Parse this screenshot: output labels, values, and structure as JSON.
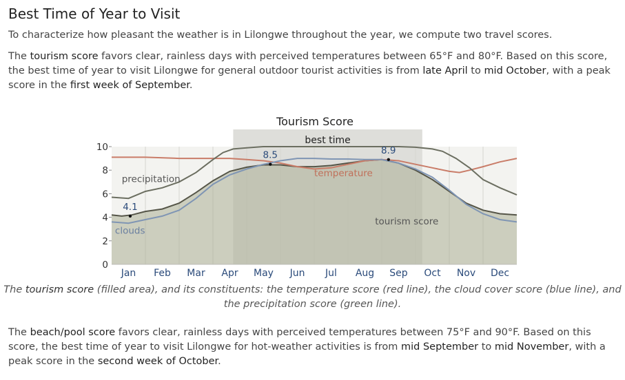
{
  "header": {
    "title": "Best Time of Year to Visit"
  },
  "intro": "To characterize how pleasant the weather is in Lilongwe throughout the year, we compute two travel scores.",
  "tourism": {
    "p1": "The ",
    "term": "tourism score",
    "p2": " favors clear, rainless days with perceived temperatures between 65°F and 80°F. Based on this score, the best time of year to visit Lilongwe for general outdoor tourist activities is from ",
    "start": "late April",
    "p3": " to ",
    "end": "mid October",
    "p4": ", with a peak score in the ",
    "peak": "first week of September",
    "p5": "."
  },
  "caption": {
    "c1": "The ",
    "term": "tourism score",
    "c2": " (filled area), and its constituents: the temperature score (red line), the cloud cover score (blue line), and the precipitation score (green line)."
  },
  "beach": {
    "p1": "The ",
    "term": "beach/pool score",
    "p2": " favors clear, rainless days with perceived temperatures between 75°F and 90°F. Based on this score, the best time of year to visit Lilongwe for hot-weather activities is from ",
    "start": "mid September",
    "p3": " to ",
    "end": "mid November",
    "p4": ", with a peak score in the ",
    "peak": "second week of October",
    "p5": "."
  },
  "chart_data": {
    "type": "area",
    "title": "Tourism Score",
    "ylim": [
      0,
      10
    ],
    "yticks": [
      0,
      2,
      4,
      6,
      8,
      10
    ],
    "xlim": [
      0,
      12
    ],
    "months": [
      "Jan",
      "Feb",
      "Mar",
      "Apr",
      "May",
      "Jun",
      "Jul",
      "Aug",
      "Sep",
      "Oct",
      "Nov",
      "Dec"
    ],
    "band": {
      "label": "best time",
      "start": 3.6,
      "end": 9.2
    },
    "series": [
      {
        "name": "tourism score",
        "role": "area",
        "x": [
          0,
          0.3,
          0.6,
          1,
          1.5,
          2,
          2.5,
          3,
          3.5,
          4,
          4.5,
          5,
          5.5,
          6,
          6.5,
          7,
          7.5,
          8,
          8.5,
          9,
          9.5,
          10,
          10.5,
          11,
          11.5,
          12
        ],
        "y": [
          4.2,
          4.1,
          4.2,
          4.5,
          4.7,
          5.2,
          6.1,
          7.1,
          7.9,
          8.25,
          8.45,
          8.45,
          8.3,
          8.3,
          8.4,
          8.6,
          8.8,
          8.9,
          8.6,
          8.0,
          7.2,
          6.2,
          5.2,
          4.6,
          4.3,
          4.2
        ]
      },
      {
        "name": "temperature",
        "role": "line",
        "color": "#c97c68",
        "x": [
          0,
          1,
          2,
          3,
          3.5,
          4,
          4.5,
          5,
          5.5,
          6,
          6.5,
          7,
          7.5,
          8,
          8.5,
          9,
          9.5,
          10,
          10.3,
          10.6,
          11,
          11.5,
          12
        ],
        "y": [
          9.1,
          9.1,
          9.0,
          9.0,
          9.0,
          8.9,
          8.8,
          8.6,
          8.3,
          8.1,
          8.2,
          8.5,
          8.8,
          8.9,
          8.8,
          8.5,
          8.2,
          7.9,
          7.8,
          8.0,
          8.3,
          8.7,
          9.0
        ]
      },
      {
        "name": "clouds",
        "role": "line",
        "color": "#7f95b4",
        "x": [
          0,
          0.5,
          1,
          1.5,
          2,
          2.5,
          3,
          3.5,
          4,
          4.5,
          5,
          5.5,
          6,
          6.5,
          7,
          7.5,
          8,
          8.5,
          9,
          9.5,
          10,
          10.5,
          11,
          11.5,
          12
        ],
        "y": [
          3.6,
          3.5,
          3.8,
          4.1,
          4.6,
          5.6,
          6.8,
          7.6,
          8.1,
          8.5,
          8.8,
          9.0,
          9.0,
          8.95,
          8.95,
          8.9,
          8.9,
          8.6,
          8.1,
          7.4,
          6.3,
          5.1,
          4.3,
          3.8,
          3.6
        ]
      },
      {
        "name": "precipitation",
        "role": "line",
        "color": "#6b6e60",
        "x": [
          0,
          0.5,
          1,
          1.5,
          2,
          2.5,
          3,
          3.3,
          3.6,
          4,
          4.5,
          5,
          6,
          7,
          8,
          8.5,
          9,
          9.5,
          9.8,
          10.2,
          10.6,
          11,
          11.5,
          12
        ],
        "y": [
          5.7,
          5.6,
          6.2,
          6.5,
          7.0,
          7.8,
          8.9,
          9.5,
          9.8,
          9.9,
          10.0,
          10.0,
          10.0,
          10.0,
          10.0,
          10.0,
          9.95,
          9.8,
          9.6,
          9.0,
          8.2,
          7.2,
          6.5,
          5.9
        ]
      }
    ],
    "series_labels": [
      {
        "text": "precipitation",
        "x": 0.3,
        "y": 7.0
      },
      {
        "text": "temperature",
        "x": 6.0,
        "y": 7.5
      },
      {
        "text": "clouds",
        "x": 0.1,
        "y": 2.6
      },
      {
        "text": "tourism score",
        "x": 7.8,
        "y": 3.4
      }
    ],
    "annotations": [
      {
        "label": "4.1",
        "x": 0.55,
        "y": 4.1
      },
      {
        "label": "8.5",
        "x": 4.7,
        "y": 8.5
      },
      {
        "label": "8.9",
        "x": 8.2,
        "y": 8.9
      }
    ]
  }
}
